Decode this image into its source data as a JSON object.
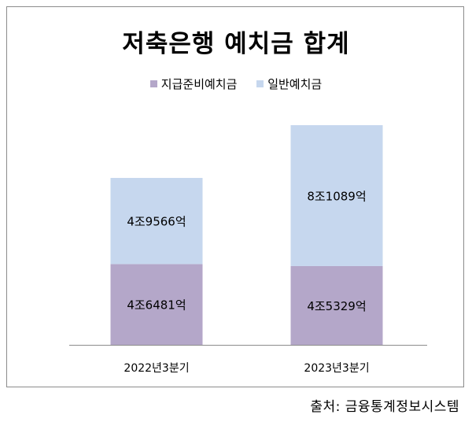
{
  "colors": {
    "reserve": "#b4a7c9",
    "general": "#c6d7ee",
    "axis": "#8c8c8c"
  },
  "source_text": "출처: 금융통계정보시스템",
  "chart_data": {
    "type": "bar",
    "stacked": true,
    "title": "저축은행 예치금 합계",
    "categories": [
      "2022년3분기",
      "2023년3분기"
    ],
    "series": [
      {
        "name": "지급준비예치금",
        "values": [
          46481,
          45329
        ],
        "labels": [
          "4조6481억",
          "4조5329억"
        ],
        "color": "#b4a7c9"
      },
      {
        "name": "일반예치금",
        "values": [
          49566,
          81089
        ],
        "labels": [
          "4조9566억",
          "8조1089억"
        ],
        "color": "#c6d7ee"
      }
    ],
    "unit": "억",
    "ylim": [
      0,
      135000
    ],
    "grid": false,
    "legend_position": "top-center"
  }
}
